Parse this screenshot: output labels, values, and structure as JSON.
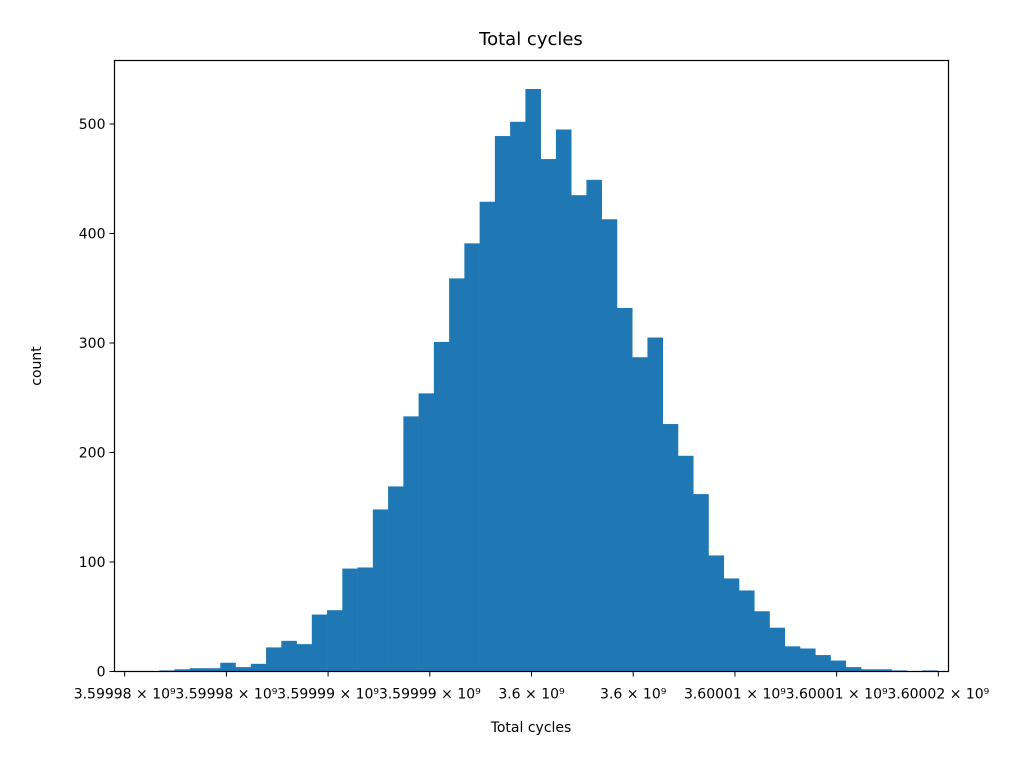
{
  "chart_data": {
    "type": "bar",
    "title": "Total cycles",
    "xlabel": "Total cycles",
    "ylabel": "count",
    "bar_color": "#1f77b4",
    "grid": false,
    "legend": "none",
    "xlim": [
      3599979500,
      3600020500
    ],
    "ylim": [
      0,
      558
    ],
    "x_ticks": [
      {
        "value": 3599980000,
        "label": "3.59998 × 10⁹"
      },
      {
        "value": 3599985000,
        "label": "3.59998 × 10⁹"
      },
      {
        "value": 3599990000,
        "label": "3.59999 × 10⁹"
      },
      {
        "value": 3599995000,
        "label": "3.59999 × 10⁹"
      },
      {
        "value": 3600000000,
        "label": "3.6 × 10⁹"
      },
      {
        "value": 3600005000,
        "label": "3.6 × 10⁹"
      },
      {
        "value": 3600010000,
        "label": "3.60001 × 10⁹"
      },
      {
        "value": 3600015000,
        "label": "3.60001 × 10⁹"
      },
      {
        "value": 3600020000,
        "label": "3.60002 × 10⁹"
      }
    ],
    "y_ticks": [
      {
        "value": 0,
        "label": "0"
      },
      {
        "value": 100,
        "label": "100"
      },
      {
        "value": 200,
        "label": "200"
      },
      {
        "value": 300,
        "label": "300"
      },
      {
        "value": 400,
        "label": "400"
      },
      {
        "value": 500,
        "label": "500"
      }
    ],
    "bin_edges": [
      3599981700,
      3599982450,
      3599983200,
      3599983950,
      3599984700,
      3599985450,
      3599986200,
      3599986950,
      3599987700,
      3599988450,
      3599989200,
      3599989950,
      3599990700,
      3599991450,
      3599992200,
      3599992950,
      3599993700,
      3599994450,
      3599995200,
      3599995950,
      3599996700,
      3599997450,
      3599998200,
      3599998950,
      3599999700,
      3600000450,
      3600001200,
      3600001950,
      3600002700,
      3600003450,
      3600004200,
      3600004950,
      3600005700,
      3600006450,
      3600007200,
      3600007950,
      3600008700,
      3600009450,
      3600010200,
      3600010950,
      3600011700,
      3600012450,
      3600013200,
      3600013950,
      3600014700,
      3600015450,
      3600016200,
      3600016950,
      3600017700,
      3600018450,
      3600019200,
      3600019950
    ],
    "counts": [
      1,
      2,
      3,
      3,
      8,
      4,
      7,
      22,
      28,
      25,
      52,
      56,
      94,
      95,
      148,
      169,
      233,
      254,
      301,
      359,
      391,
      429,
      489,
      502,
      532,
      468,
      495,
      435,
      449,
      413,
      332,
      287,
      305,
      226,
      197,
      162,
      106,
      85,
      74,
      55,
      40,
      23,
      21,
      15,
      10,
      4,
      2,
      2,
      1,
      0,
      1
    ]
  }
}
